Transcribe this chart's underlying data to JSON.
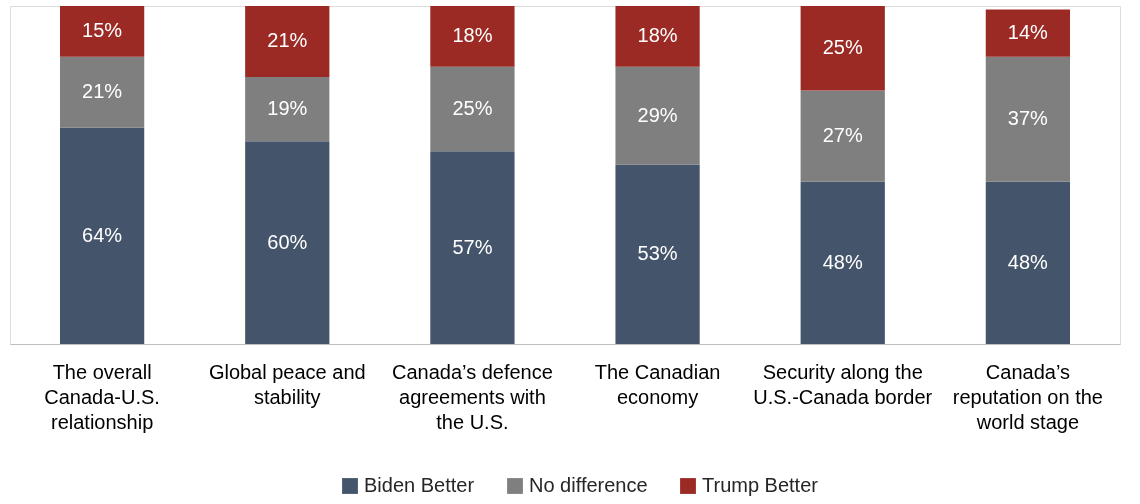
{
  "chart_data": {
    "type": "bar",
    "stacked": true,
    "legend": "bottom",
    "grid": false,
    "tick_labels": "x",
    "categories": [
      "The overall Canada-U.S. relationship",
      "Global peace and stability",
      "Canada’s defence agreements with the U.S.",
      "The Canadian economy",
      "Security along the U.S.-Canada border",
      "Canada’s reputation on the world stage"
    ],
    "series": [
      {
        "name": "Biden Better",
        "color": "#44546a",
        "values": [
          64,
          60,
          57,
          53,
          48,
          48
        ],
        "value_labels": [
          "64%",
          "60%",
          "57%",
          "53%",
          "48%",
          "48%"
        ]
      },
      {
        "name": "No difference",
        "color": "#7f7f7f",
        "values": [
          21,
          19,
          25,
          29,
          27,
          37
        ],
        "value_labels": [
          "21%",
          "19%",
          "25%",
          "29%",
          "27%",
          "37%"
        ]
      },
      {
        "name": "Trump Better",
        "color": "#9b2a24",
        "values": [
          15,
          21,
          18,
          18,
          25,
          14
        ],
        "value_labels": [
          "15%",
          "21%",
          "18%",
          "18%",
          "25%",
          "14%"
        ]
      }
    ]
  }
}
